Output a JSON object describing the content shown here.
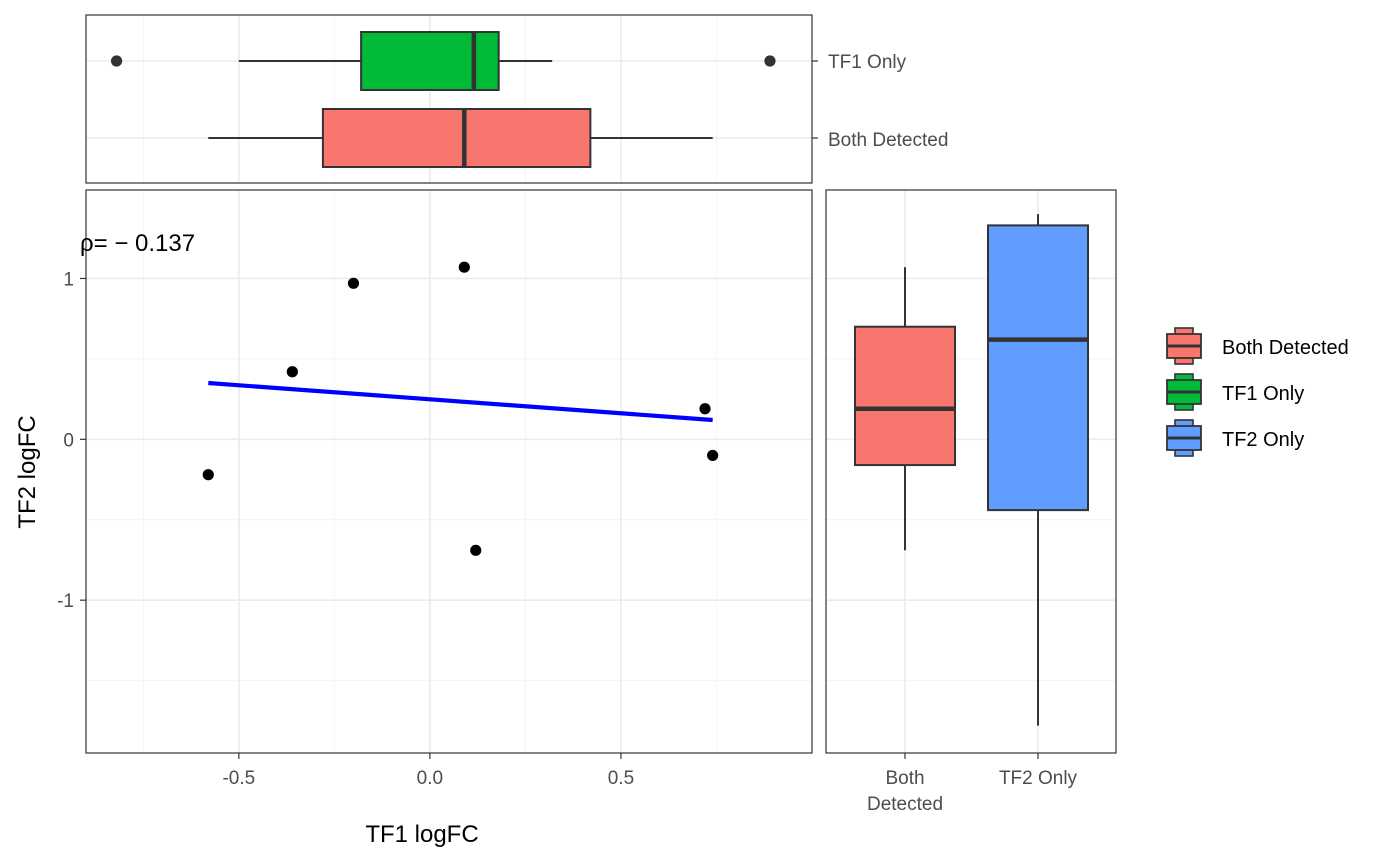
{
  "colors": {
    "Both Detected": "#F8766D",
    "TF1 Only": "#00BA38",
    "TF2 Only": "#619CFF",
    "fit_line": "#0000FF",
    "points": "#000000"
  },
  "annotation": "ρ= − 0.137",
  "legend": {
    "placement": "right",
    "entries": [
      "Both Detected",
      "TF1 Only",
      "TF2 Only"
    ]
  },
  "chart_data": [
    {
      "type": "scatter",
      "xlabel": "TF1 logFC",
      "ylabel": "TF2 logFC",
      "xlim": [
        -0.9,
        1.0
      ],
      "ylim": [
        -1.95,
        1.55
      ],
      "xticks": [
        -0.5,
        0.0,
        0.5
      ],
      "xtick_labels": [
        "-0.5",
        "0.0",
        "0.5"
      ],
      "yticks": [
        -1,
        0,
        1
      ],
      "ytick_labels": [
        "-1",
        "0",
        "1"
      ],
      "grid": true,
      "points": [
        {
          "x": -0.58,
          "y": -0.22
        },
        {
          "x": -0.36,
          "y": 0.42
        },
        {
          "x": -0.2,
          "y": 0.97
        },
        {
          "x": 0.09,
          "y": 1.07
        },
        {
          "x": 0.12,
          "y": -0.69
        },
        {
          "x": 0.72,
          "y": 0.19
        },
        {
          "x": 0.74,
          "y": -0.1
        }
      ],
      "fit_line": {
        "x": [
          -0.58,
          0.74
        ],
        "y": [
          0.35,
          0.12
        ]
      }
    },
    {
      "type": "boxplot",
      "orientation": "horizontal",
      "axis": "TF1 logFC",
      "xlim": [
        -0.9,
        1.0
      ],
      "categories": [
        "Both Detected",
        "TF1 Only"
      ],
      "boxes": [
        {
          "group": "Both Detected",
          "whisker_low": -0.58,
          "q1": -0.28,
          "median": 0.09,
          "q3": 0.42,
          "whisker_high": 0.74,
          "outliers": []
        },
        {
          "group": "TF1 Only",
          "whisker_low": -0.5,
          "q1": -0.18,
          "median": 0.115,
          "q3": 0.18,
          "whisker_high": 0.32,
          "outliers": [
            -0.82,
            0.89
          ]
        }
      ]
    },
    {
      "type": "boxplot",
      "orientation": "vertical",
      "axis": "TF2 logFC",
      "ylim": [
        -1.95,
        1.55
      ],
      "categories": [
        "Both Detected",
        "TF2 Only"
      ],
      "tick_labels": [
        [
          "Both",
          "Detected"
        ],
        [
          "TF2 Only"
        ]
      ],
      "boxes": [
        {
          "group": "Both Detected",
          "whisker_low": -0.69,
          "q1": -0.16,
          "median": 0.19,
          "q3": 0.7,
          "whisker_high": 1.07,
          "outliers": []
        },
        {
          "group": "TF2 Only",
          "whisker_low": -1.78,
          "q1": -0.44,
          "median": 0.62,
          "q3": 1.33,
          "whisker_high": 1.4,
          "outliers": []
        }
      ]
    }
  ]
}
